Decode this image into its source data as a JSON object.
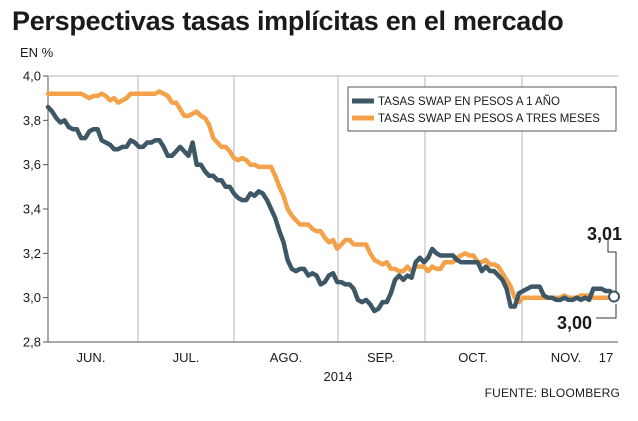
{
  "title": "Perspectivas tasas implícitas en el mercado",
  "unit_label": "EN %",
  "source": "FUENTE: BLOOMBERG",
  "chart_data": {
    "type": "line",
    "ylim": [
      2.8,
      4.0
    ],
    "yticks": [
      "4,0",
      "3,8",
      "3,6",
      "3,4",
      "3,2",
      "3,0",
      "2,8"
    ],
    "ytick_values": [
      4.0,
      3.8,
      3.6,
      3.4,
      3.2,
      3.0,
      2.8
    ],
    "x_month_labels": [
      "JUN.",
      "JUL.",
      "AGO.",
      "SEP.",
      "OCT.",
      "NOV."
    ],
    "x_end_label": "17",
    "x_year_label": "2014",
    "grid": "vertical month separators",
    "legend_position": "top-right",
    "series": [
      {
        "name": "TASAS SWAP EN PESOS A 1 AÑO",
        "color": "#3d5766",
        "values": [
          3.86,
          3.84,
          3.81,
          3.79,
          3.8,
          3.77,
          3.76,
          3.76,
          3.72,
          3.72,
          3.75,
          3.76,
          3.76,
          3.71,
          3.7,
          3.69,
          3.67,
          3.67,
          3.68,
          3.68,
          3.71,
          3.7,
          3.68,
          3.68,
          3.7,
          3.7,
          3.71,
          3.71,
          3.68,
          3.64,
          3.64,
          3.66,
          3.68,
          3.66,
          3.64,
          3.7,
          3.6,
          3.6,
          3.57,
          3.55,
          3.55,
          3.53,
          3.53,
          3.5,
          3.5,
          3.47,
          3.45,
          3.44,
          3.44,
          3.47,
          3.46,
          3.48,
          3.47,
          3.44,
          3.4,
          3.36,
          3.3,
          3.25,
          3.17,
          3.13,
          3.12,
          3.13,
          3.13,
          3.1,
          3.11,
          3.1,
          3.06,
          3.07,
          3.1,
          3.11,
          3.07,
          3.07,
          3.06,
          3.06,
          3.04,
          2.99,
          2.98,
          2.99,
          2.97,
          2.94,
          2.95,
          2.98,
          2.98,
          3.02,
          3.08,
          3.1,
          3.08,
          3.1,
          3.09,
          3.16,
          3.18,
          3.16,
          3.18,
          3.22,
          3.2,
          3.19,
          3.19,
          3.19,
          3.19,
          3.17,
          3.16,
          3.16,
          3.16,
          3.16,
          3.16,
          3.12,
          3.14,
          3.12,
          3.12,
          3.1,
          3.08,
          3.04,
          2.96,
          2.96,
          3.02,
          3.03,
          3.04,
          3.05,
          3.05,
          3.05,
          3.01,
          3.0,
          3.0,
          2.99,
          2.99,
          3.0,
          2.99,
          2.99,
          3.0,
          2.99,
          3.0,
          2.99,
          3.04,
          3.04,
          3.04,
          3.03,
          3.03,
          3.01
        ]
      },
      {
        "name": "TASAS SWAP EN PESOS A TRES MESES",
        "color": "#f4a24a",
        "values": [
          3.92,
          3.92,
          3.92,
          3.92,
          3.92,
          3.92,
          3.92,
          3.92,
          3.92,
          3.91,
          3.9,
          3.91,
          3.91,
          3.92,
          3.91,
          3.89,
          3.9,
          3.88,
          3.89,
          3.9,
          3.92,
          3.92,
          3.92,
          3.92,
          3.92,
          3.92,
          3.92,
          3.93,
          3.92,
          3.91,
          3.88,
          3.88,
          3.85,
          3.82,
          3.82,
          3.83,
          3.84,
          3.82,
          3.81,
          3.78,
          3.72,
          3.7,
          3.68,
          3.68,
          3.66,
          3.63,
          3.62,
          3.63,
          3.62,
          3.6,
          3.6,
          3.59,
          3.59,
          3.59,
          3.59,
          3.55,
          3.5,
          3.46,
          3.4,
          3.37,
          3.35,
          3.33,
          3.33,
          3.33,
          3.31,
          3.3,
          3.3,
          3.27,
          3.25,
          3.26,
          3.22,
          3.24,
          3.26,
          3.26,
          3.24,
          3.24,
          3.24,
          3.24,
          3.2,
          3.17,
          3.16,
          3.15,
          3.16,
          3.13,
          3.13,
          3.12,
          3.12,
          3.14,
          3.12,
          3.14,
          3.14,
          3.14,
          3.12,
          3.14,
          3.13,
          3.13,
          3.16,
          3.16,
          3.16,
          3.18,
          3.19,
          3.2,
          3.19,
          3.19,
          3.16,
          3.16,
          3.17,
          3.15,
          3.15,
          3.14,
          3.11,
          3.08,
          3.05,
          3.0,
          2.98,
          3.0,
          3.0,
          3.0,
          3.0,
          3.0,
          3.0,
          3.0,
          3.0,
          3.0,
          3.0,
          3.01,
          3.0,
          3.0,
          3.0,
          3.01,
          3.01,
          3.01,
          3.0,
          3.0,
          3.0,
          3.0,
          3.0,
          3.0
        ]
      }
    ],
    "callouts": {
      "one_year_last": "3,01",
      "three_month_last": "3,00"
    }
  }
}
